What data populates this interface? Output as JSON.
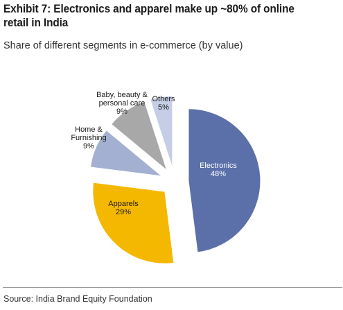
{
  "title": "Exhibit 7: Electronics and apparel make up ~80% of online retail in India",
  "subtitle": "Share of different segments in e-commerce (by value)",
  "source": "Source: India Brand Equity Foundation",
  "chart_data": {
    "type": "pie",
    "exploded": true,
    "slices": [
      {
        "label": [
          "Electronics"
        ],
        "value": 48,
        "value_label": "48%",
        "color": "#5b70a8",
        "text_color": "#ffffff"
      },
      {
        "label": [
          "Apparels"
        ],
        "value": 29,
        "value_label": "29%",
        "color": "#f5b800",
        "text_color": "#1a1a1a"
      },
      {
        "label": [
          "Home &",
          "Furnishing"
        ],
        "value": 9,
        "value_label": "9%",
        "color": "#a3b0d1",
        "text_color": "#1a1a1a"
      },
      {
        "label": [
          "Baby, beauty &",
          "personal care"
        ],
        "value": 9,
        "value_label": "9%",
        "color": "#a8a8a8",
        "text_color": "#1a1a1a"
      },
      {
        "label": [
          "Others"
        ],
        "value": 5,
        "value_label": "5%",
        "color": "#c5cee6",
        "text_color": "#1a1a1a"
      }
    ]
  }
}
